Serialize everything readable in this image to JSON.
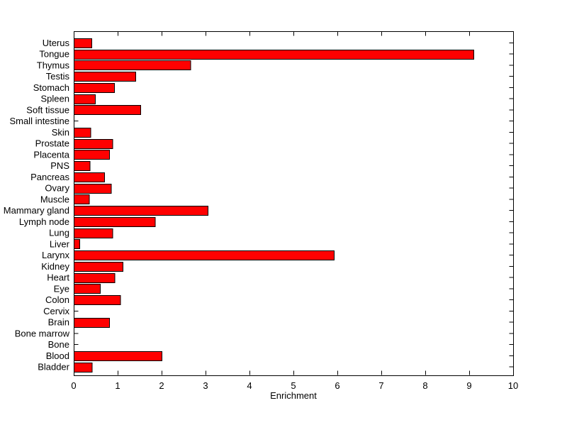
{
  "figure": {
    "background": "#FFFFFF"
  },
  "chart_data": {
    "type": "bar",
    "orientation": "horizontal",
    "title": "",
    "xlabel": "Enrichment",
    "ylabel": "",
    "categories": [
      "Uterus",
      "Tongue",
      "Thymus",
      "Testis",
      "Stomach",
      "Spleen",
      "Soft tissue",
      "Small intestine",
      "Skin",
      "Prostate",
      "Placenta",
      "PNS",
      "Pancreas",
      "Ovary",
      "Muscle",
      "Mammary gland",
      "Lymph node",
      "Lung",
      "Liver",
      "Larynx",
      "Kidney",
      "Heart",
      "Eye",
      "Colon",
      "Cervix",
      "Brain",
      "Bone marrow",
      "Bone",
      "Blood",
      "Bladder"
    ],
    "values": [
      0.4,
      9.1,
      2.65,
      1.4,
      0.92,
      0.48,
      1.52,
      0,
      0.38,
      0.88,
      0.81,
      0.36,
      0.69,
      0.85,
      0.35,
      3.05,
      1.85,
      0.88,
      0.13,
      5.92,
      1.11,
      0.93,
      0.6,
      1.06,
      0,
      0.81,
      0,
      0,
      2.0,
      0.41
    ],
    "xlim": [
      0,
      10
    ],
    "xticks": [
      0,
      1,
      2,
      3,
      4,
      5,
      6,
      7,
      8,
      9,
      10
    ],
    "grid": false,
    "legend": null,
    "bar_color": "#FF0000",
    "bar_edge_color": "#000000",
    "axis_color": "#000000",
    "text_color": "#000000"
  }
}
